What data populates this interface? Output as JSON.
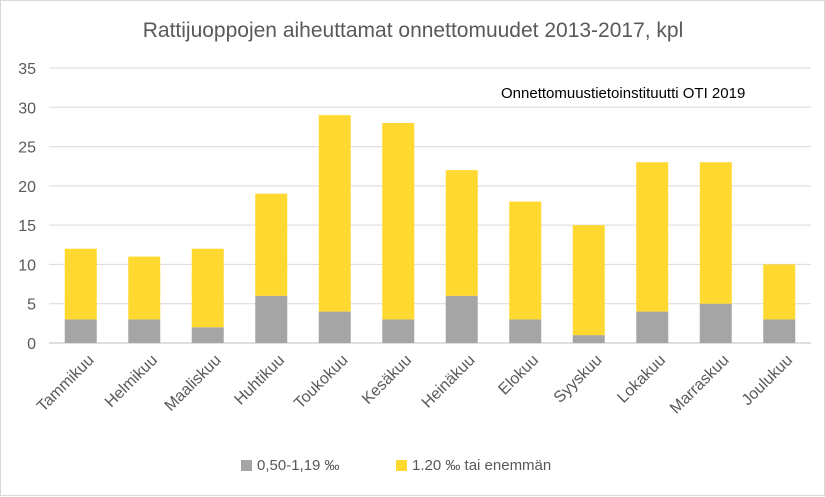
{
  "chart_data": {
    "type": "bar",
    "stacked": true,
    "title": "Rattijuoppojen aiheuttamat onnettomuudet 2013-2017, kpl",
    "annotation": "Onnettomuustietoinstituutti OTI 2019",
    "xlabel": "",
    "ylabel": "",
    "ylim": [
      0,
      35
    ],
    "yticks": [
      0,
      5,
      10,
      15,
      20,
      25,
      30,
      35
    ],
    "grid": true,
    "legend_position": "bottom",
    "categories": [
      "Tammikuu",
      "Helmikuu",
      "Maaliskuu",
      "Huhtikuu",
      "Toukokuu",
      "Kesäkuu",
      "Heinäkuu",
      "Elokuu",
      "Syyskuu",
      "Lokakuu",
      "Marraskuu",
      "Joulukuu"
    ],
    "series": [
      {
        "name": "0,50-1,19 ‰",
        "color": "#a5a5a5",
        "values": [
          3,
          3,
          2,
          6,
          4,
          3,
          6,
          3,
          1,
          4,
          5,
          3
        ]
      },
      {
        "name": "1.20 ‰ tai enemmän",
        "color": "#ffd92f",
        "values": [
          9,
          8,
          10,
          13,
          25,
          25,
          16,
          15,
          14,
          19,
          18,
          7
        ]
      }
    ],
    "colors": {
      "grid": "#d9d9d9",
      "text": "#404040",
      "axis": "#bfbfbf"
    }
  }
}
